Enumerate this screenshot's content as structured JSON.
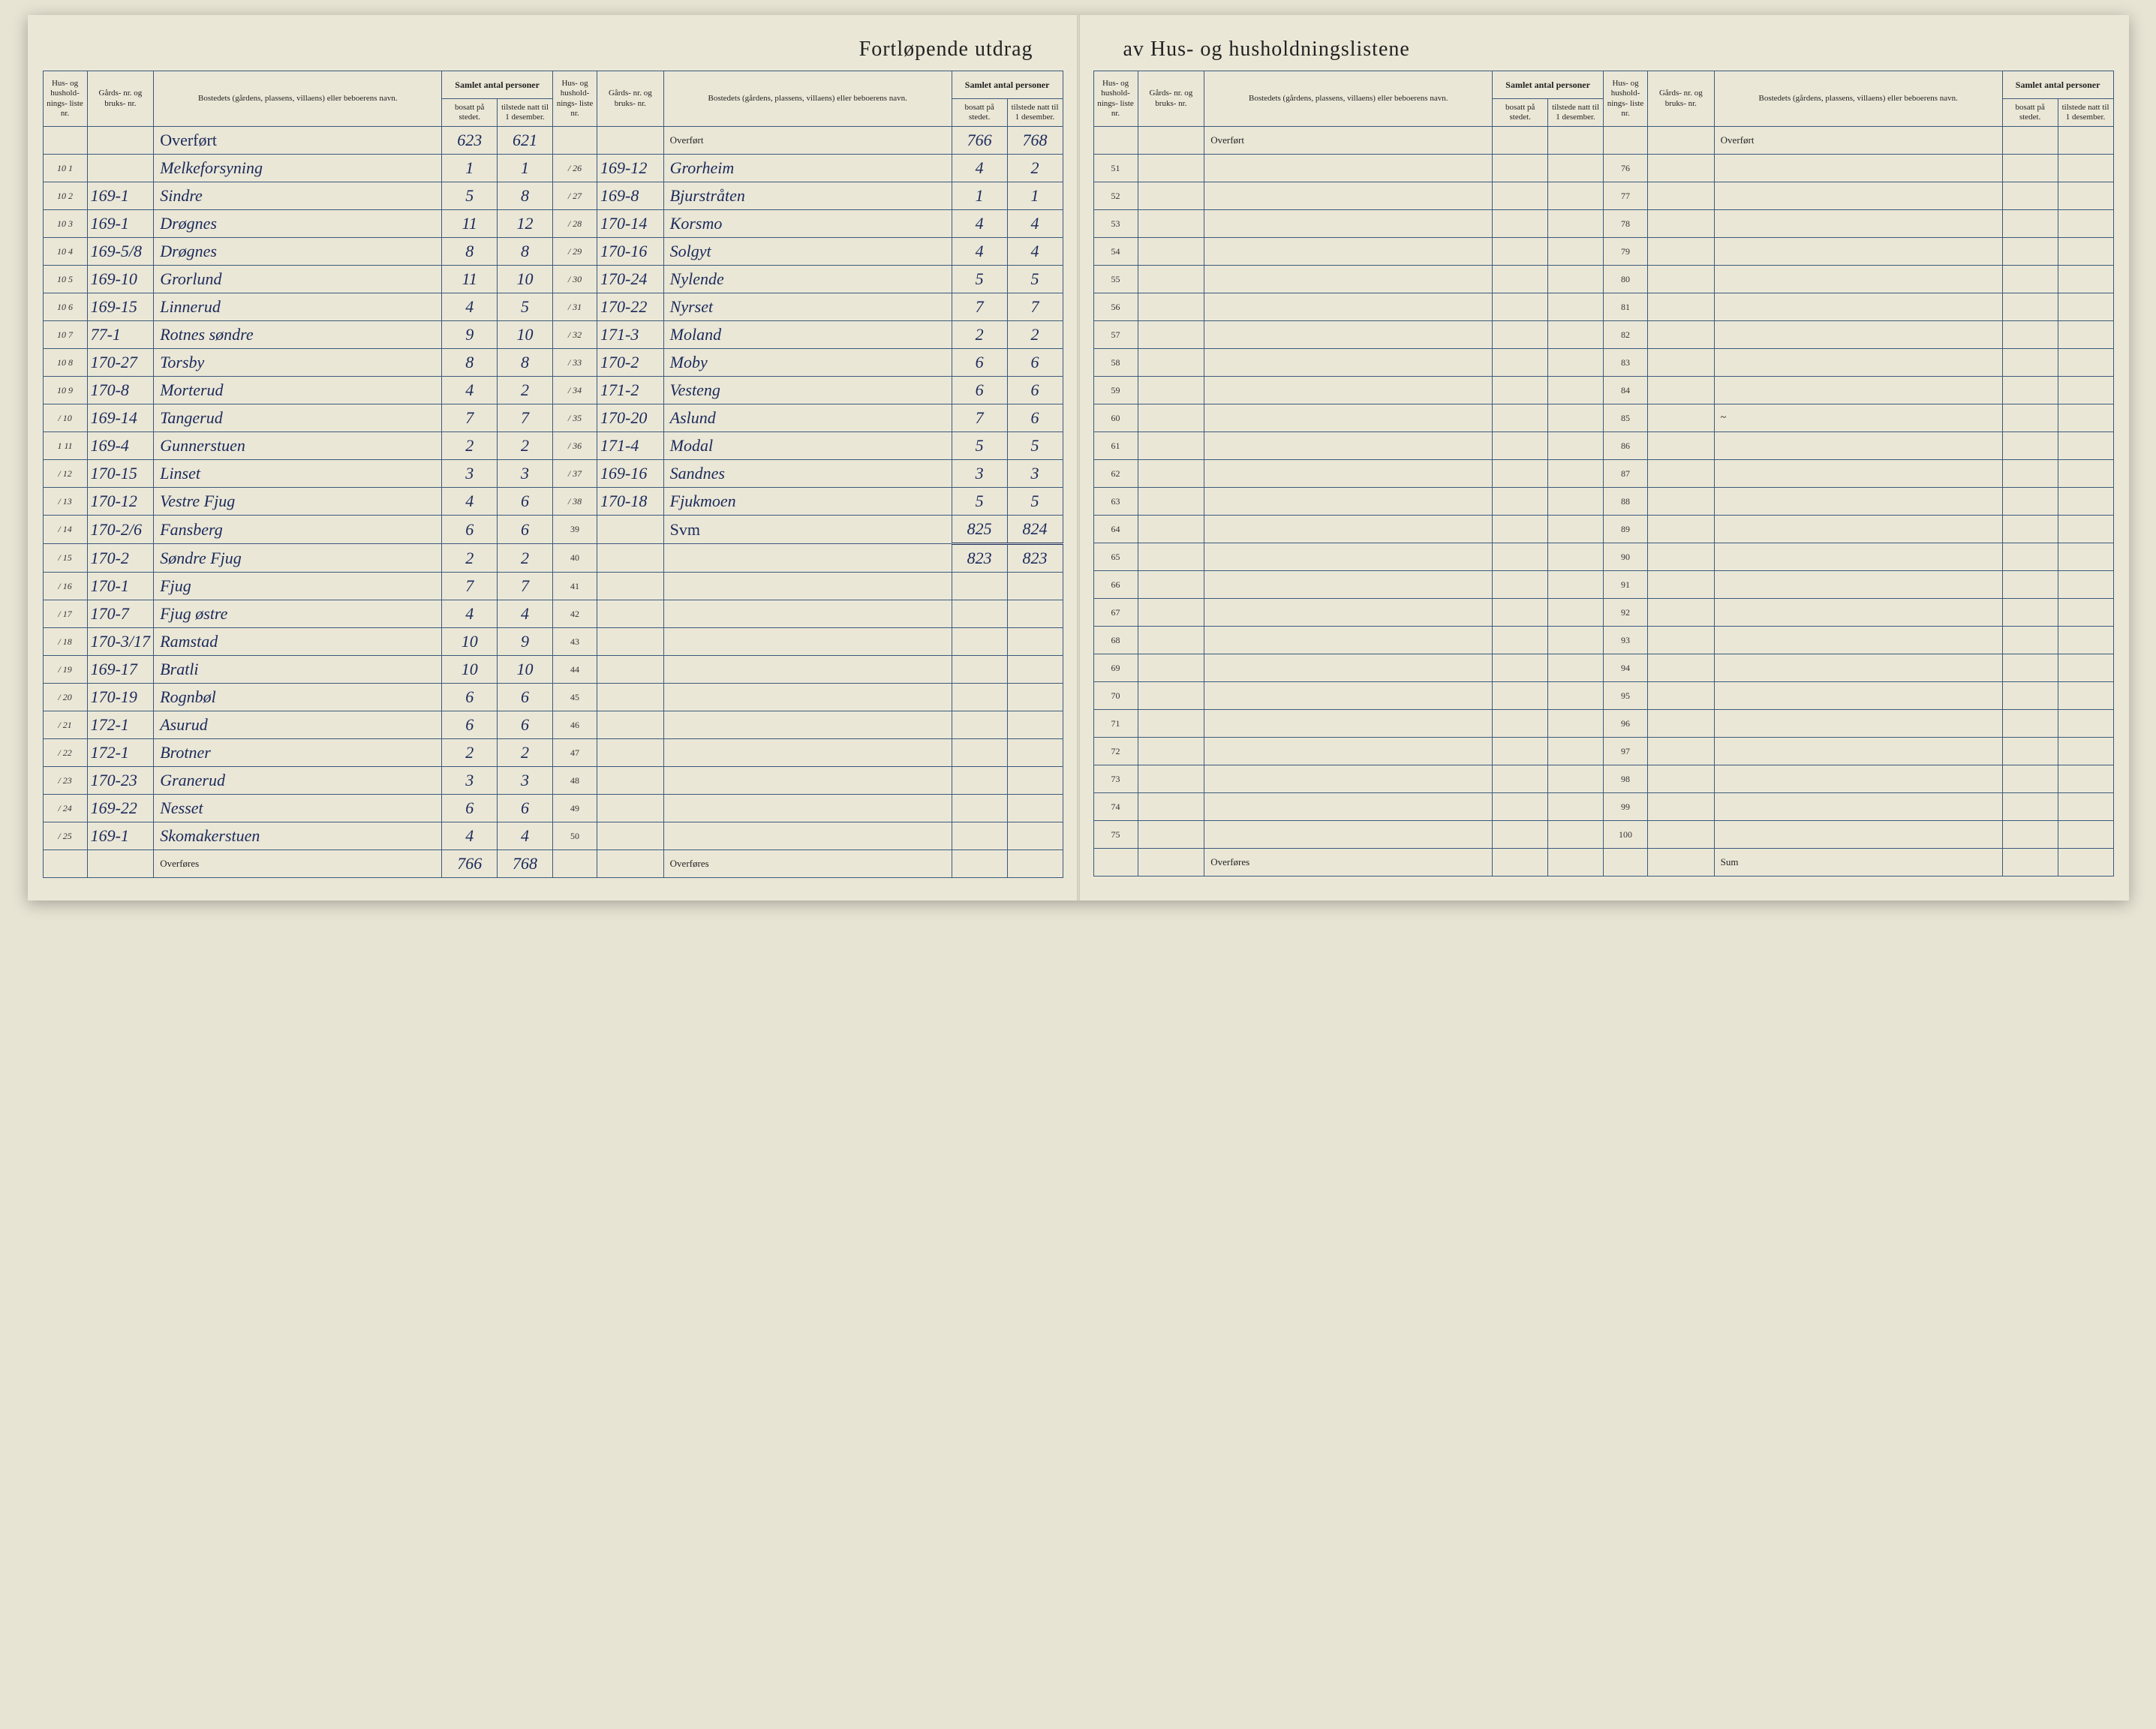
{
  "title_left": "Fortløpende utdrag",
  "title_right": "av Hus- og husholdningslistene",
  "headers": {
    "liste": "Hus- og hushold- nings- liste nr.",
    "gard": "Gårds- nr. og bruks- nr.",
    "bosted": "Bostedets (gårdens, plassens, villaens) eller beboerens navn.",
    "samlet": "Samlet antal personer",
    "bosatt": "bosatt på stedet.",
    "tilstede": "tilstede natt til 1 desember."
  },
  "overfort_label": "Overført",
  "overfores_label": "Overføres",
  "sum_label": "Sum",
  "svm_label": "Svm",
  "left_page": {
    "section1": {
      "overfort": {
        "bosatt": "623",
        "tilstede": "621"
      },
      "rows": [
        {
          "n": "10 1",
          "gard": "",
          "bosted": "Melkeforsyning",
          "bosatt": "1",
          "tilstede": "1"
        },
        {
          "n": "10 2",
          "gard": "169-1",
          "bosted": "Sindre",
          "bosatt": "5",
          "tilstede": "8"
        },
        {
          "n": "10 3",
          "gard": "169-1",
          "bosted": "Drøgnes",
          "bosatt": "11",
          "tilstede": "12"
        },
        {
          "n": "10 4",
          "gard": "169-5/8",
          "bosted": "Drøgnes",
          "bosatt": "8",
          "tilstede": "8"
        },
        {
          "n": "10 5",
          "gard": "169-10",
          "bosted": "Grorlund",
          "bosatt": "11",
          "tilstede": "10"
        },
        {
          "n": "10 6",
          "gard": "169-15",
          "bosted": "Linnerud",
          "bosatt": "4",
          "tilstede": "5"
        },
        {
          "n": "10 7",
          "gard": "77-1",
          "bosted": "Rotnes søndre",
          "bosatt": "9",
          "tilstede": "10"
        },
        {
          "n": "10 8",
          "gard": "170-27",
          "bosted": "Torsby",
          "bosatt": "8",
          "tilstede": "8"
        },
        {
          "n": "10 9",
          "gard": "170-8",
          "bosted": "Morterud",
          "bosatt": "4",
          "tilstede": "2"
        },
        {
          "n": "/ 10",
          "gard": "169-14",
          "bosted": "Tangerud",
          "bosatt": "7",
          "tilstede": "7"
        },
        {
          "n": "1 11",
          "gard": "169-4",
          "bosted": "Gunnerstuen",
          "bosatt": "2",
          "tilstede": "2"
        },
        {
          "n": "/ 12",
          "gard": "170-15",
          "bosted": "Linset",
          "bosatt": "3",
          "tilstede": "3"
        },
        {
          "n": "/ 13",
          "gard": "170-12",
          "bosted": "Vestre Fjug",
          "bosatt": "4",
          "tilstede": "6"
        },
        {
          "n": "/ 14",
          "gard": "170-2/6",
          "bosted": "Fansberg",
          "bosatt": "6",
          "tilstede": "6"
        },
        {
          "n": "/ 15",
          "gard": "170-2",
          "bosted": "Søndre Fjug",
          "bosatt": "2",
          "tilstede": "2"
        },
        {
          "n": "/ 16",
          "gard": "170-1",
          "bosted": "Fjug",
          "bosatt": "7",
          "tilstede": "7"
        },
        {
          "n": "/ 17",
          "gard": "170-7",
          "bosted": "Fjug østre",
          "bosatt": "4",
          "tilstede": "4"
        },
        {
          "n": "/ 18",
          "gard": "170-3/17",
          "bosted": "Ramstad",
          "bosatt": "10",
          "tilstede": "9"
        },
        {
          "n": "/ 19",
          "gard": "169-17",
          "bosted": "Bratli",
          "bosatt": "10",
          "tilstede": "10"
        },
        {
          "n": "/ 20",
          "gard": "170-19",
          "bosted": "Rognbøl",
          "bosatt": "6",
          "tilstede": "6"
        },
        {
          "n": "/ 21",
          "gard": "172-1",
          "bosted": "Asurud",
          "bosatt": "6",
          "tilstede": "6"
        },
        {
          "n": "/ 22",
          "gard": "172-1",
          "bosted": "Brotner",
          "bosatt": "2",
          "tilstede": "2"
        },
        {
          "n": "/ 23",
          "gard": "170-23",
          "bosted": "Granerud",
          "bosatt": "3",
          "tilstede": "3"
        },
        {
          "n": "/ 24",
          "gard": "169-22",
          "bosted": "Nesset",
          "bosatt": "6",
          "tilstede": "6"
        },
        {
          "n": "/ 25",
          "gard": "169-1",
          "bosted": "Skomakerstuen",
          "bosatt": "4",
          "tilstede": "4"
        }
      ],
      "overfores": {
        "bosatt": "766",
        "tilstede": "768"
      }
    },
    "section2": {
      "overfort": {
        "bosatt": "766",
        "tilstede": "768"
      },
      "rows": [
        {
          "n": "/ 26",
          "gard": "169-12",
          "bosted": "Grorheim",
          "bosatt": "4",
          "tilstede": "2"
        },
        {
          "n": "/ 27",
          "gard": "169-8",
          "bosted": "Bjurstråten",
          "bosatt": "1",
          "tilstede": "1"
        },
        {
          "n": "/ 28",
          "gard": "170-14",
          "bosted": "Korsmo",
          "bosatt": "4",
          "tilstede": "4"
        },
        {
          "n": "/ 29",
          "gard": "170-16",
          "bosted": "Solgyt",
          "bosatt": "4",
          "tilstede": "4"
        },
        {
          "n": "/ 30",
          "gard": "170-24",
          "bosted": "Nylende",
          "bosatt": "5",
          "tilstede": "5"
        },
        {
          "n": "/ 31",
          "gard": "170-22",
          "bosted": "Nyrset",
          "bosatt": "7",
          "tilstede": "7"
        },
        {
          "n": "/ 32",
          "gard": "171-3",
          "bosted": "Moland",
          "bosatt": "2",
          "tilstede": "2"
        },
        {
          "n": "/ 33",
          "gard": "170-2",
          "bosted": "Moby",
          "bosatt": "6",
          "tilstede": "6"
        },
        {
          "n": "/ 34",
          "gard": "171-2",
          "bosted": "Vesteng",
          "bosatt": "6",
          "tilstede": "6"
        },
        {
          "n": "/ 35",
          "gard": "170-20",
          "bosted": "Aslund",
          "bosatt": "7",
          "tilstede": "6"
        },
        {
          "n": "/ 36",
          "gard": "171-4",
          "bosted": "Modal",
          "bosatt": "5",
          "tilstede": "5"
        },
        {
          "n": "/ 37",
          "gard": "169-16",
          "bosted": "Sandnes",
          "bosatt": "3",
          "tilstede": "3"
        },
        {
          "n": "/ 38",
          "gard": "170-18",
          "bosted": "Fjukmoen",
          "bosatt": "5",
          "tilstede": "5"
        }
      ],
      "sum": {
        "bosatt": "825",
        "tilstede": "824"
      },
      "corrected": {
        "bosatt": "823",
        "tilstede": "823"
      },
      "empty_rows": [
        "39",
        "40",
        "41",
        "42",
        "43",
        "44",
        "45",
        "46",
        "47",
        "48",
        "49",
        "50"
      ]
    }
  },
  "right_page": {
    "section3": {
      "rows_from": 51,
      "rows_to": 75
    },
    "section4": {
      "rows_from": 76,
      "rows_to": 100
    }
  },
  "colors": {
    "paper": "#ebe7d7",
    "ink_printed": "#222222",
    "ink_handwritten": "#1a2a5a",
    "rule_lines": "#3a5a7a"
  }
}
